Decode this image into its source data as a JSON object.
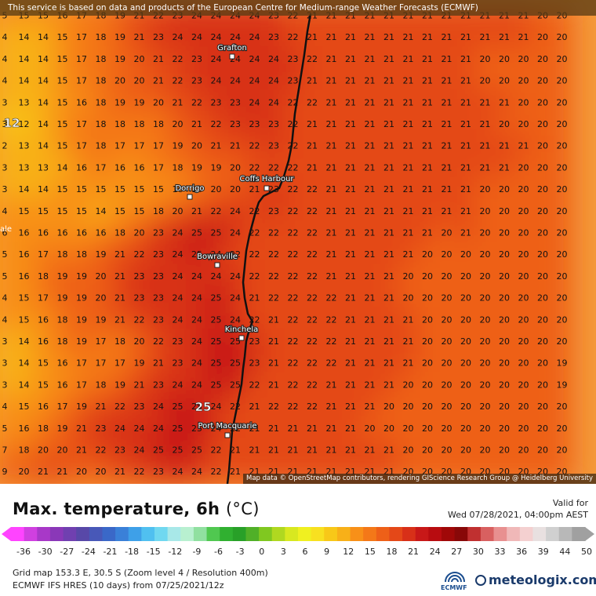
{
  "banner": {
    "text": "This service is based on data and products of the European Centre for Medium-range Weather Forecasts (ECMWF)"
  },
  "attribution": {
    "text": "Map data © OpenStreetMap contributors, rendering GIScience Research Group @ Heidelberg University"
  },
  "towns": [
    {
      "name": "Grafton"
    },
    {
      "name": "Dorrigo"
    },
    {
      "name": "Coffs Harbour"
    },
    {
      "name": "Bowraville"
    },
    {
      "name": "Kinchela"
    },
    {
      "name": "Port Macquarie"
    }
  ],
  "big_labels": {
    "left": "12",
    "port": "25"
  },
  "edge_label": "ale",
  "grid_values": [
    "5 15 15 16 17 18 19 21 22 23 24 24 24 24 23 22 21 21 21 21 21 21 21 21 21 21 21 21 20 20",
    "4 14 14 15 17 18 19 21 23 24 24 24 24 24 23 22 21 21 21 21 21 21 21 21 21 21 21 21 20 20",
    "4 14 14 15 17 18 19 20 21 22 23 24 24 24 24 23 22 21 21 21 21 21 21 21 21 20 20 20 20 20",
    "4 14 14 15 17 18 20 20 21 22 23 24 24 24 24 23 21 21 21 21 21 21 21 21 21 20 20 20 20 20",
    "3 13 14 15 16 18 19 19 20 21 22 23 23 24 24 22 22 21 21 21 21 21 21 21 21 21 21 20 20 20",
    "3 12 14 15 17 18 18 18 18 20 21 22 23 23 23 22 21 21 21 21 21 21 21 21 21 21 20 20 20 20",
    "2 13 14 15 17 18 17 17 17 19 20 21 21 22 23 22 21 21 21 21 21 21 21 21 21 21 21 21 20 20",
    "3 13 13 14 16 17 16 16 17 18 19 19 20 22 22 22 21 21 21 21 21 21 21 21 21 21 21 20 20 20",
    "3 14 14 15 15 15 15 15 15 16 18 20 20 21 23 22 22 21 21 21 21 21 21 21 21 20 20 20 20 20",
    "4 15 15 15 15 14 15 15 18 20 21 22 24 22 23 22 22 21 21 21 21 21 21 21 21 20 20 20 20 20",
    "6 16 16 16 16 16 18 20 23 24 25 25 24 22 22 22 22 21 21 21 21 21 21 20 21 20 20 20 20 20",
    "5 16 17 18 18 19 21 22 23 24 25 24 22 22 22 22 22 21 21 21 21 21 20 20 20 20 20 20 20 20",
    "5 16 18 19 19 20 21 23 23 24 24 24 24 22 22 22 22 21 21 21 21 20 20 20 20 20 20 20 20 20",
    "4 15 17 19 19 20 21 23 23 24 24 25 24 21 22 22 22 22 21 21 21 20 20 20 20 20 20 20 20 20",
    "4 15 16 18 19 19 21 22 23 24 24 25 24 22 21 22 22 22 21 21 21 21 20 20 20 20 20 20 20 20",
    "3 14 16 18 19 17 18 20 22 23 24 25 25 23 21 22 22 22 21 21 21 21 20 20 20 20 20 20 20 20",
    "3 14 15 16 17 17 17 19 21 23 24 25 25 23 21 22 22 22 21 21 21 21 20 20 20 20 20 20 20 19",
    "3 14 15 16 17 18 19 21 23 24 24 25 25 22 21 22 22 21 21 21 21 20 20 20 20 20 20 20 20 19",
    "4 15 16 17 19 21 22 23 24 25 25 24 22 21 22 22 22 21 21 21 20 20 20 20 20 20 20 20 20 20",
    "5 16 18 19 21 23 24 24 24 25 25 24 22 21 21 21 21 21 21 20 20 20 20 20 20 20 20 20 20 20",
    "7 18 20 20 21 22 23 24 25 25 25 22 21 21 21 21 21 21 21 21 21 20 20 20 20 20 20 20 20 20",
    "9 20 21 21 20 20 21 22 23 24 24 22 21 21 21 21 21 21 21 21 21 20 20 20 20 20 20 20 20 20"
  ],
  "footer": {
    "title": "Max. temperature, 6h",
    "unit": "(°C)",
    "valid_label": "Valid for",
    "valid_date": "Wed 07/28/2021, 04:00pm AEST",
    "grid_info": "Grid map 153.3 E, 30.5 S (Zoom level 4 / Resolution 400m)",
    "model_info": "ECMWF IFS HRES (10 days) from 07/25/2021/12z",
    "ecmwf_logo": "ECMWF",
    "brand": "meteologix.com"
  },
  "colorbar": {
    "tick_labels": [
      "-36",
      "-30",
      "-27",
      "-24",
      "-21",
      "-18",
      "-15",
      "-12",
      "-9",
      "-6",
      "-3",
      "0",
      "3",
      "6",
      "9",
      "12",
      "15",
      "18",
      "21",
      "24",
      "27",
      "30",
      "33",
      "36",
      "39",
      "44",
      "50"
    ],
    "colors": [
      "#ff44ff",
      "#d040e0",
      "#a838c8",
      "#8a38b8",
      "#7040b0",
      "#5848a8",
      "#4858b8",
      "#3a68c8",
      "#3a80d8",
      "#3ea0e8",
      "#50c0f0",
      "#70d8f0",
      "#a8e8e8",
      "#b8f0d0",
      "#90e0a0",
      "#50c850",
      "#30b030",
      "#28a028",
      "#50b028",
      "#80c820",
      "#b0d820",
      "#d8e820",
      "#f0f020",
      "#f8e020",
      "#f8c818",
      "#f8b018",
      "#f89018",
      "#f47818",
      "#ee6018",
      "#e44818",
      "#d83018",
      "#c81818",
      "#b80c10",
      "#a00808",
      "#880808",
      "#c03030",
      "#d86060",
      "#e89090",
      "#f0b8b8",
      "#f4d0d0",
      "#e8e0e0",
      "#d0d0d0",
      "#b8b8b8",
      "#a0a0a0"
    ],
    "min": -36,
    "max": 50
  }
}
